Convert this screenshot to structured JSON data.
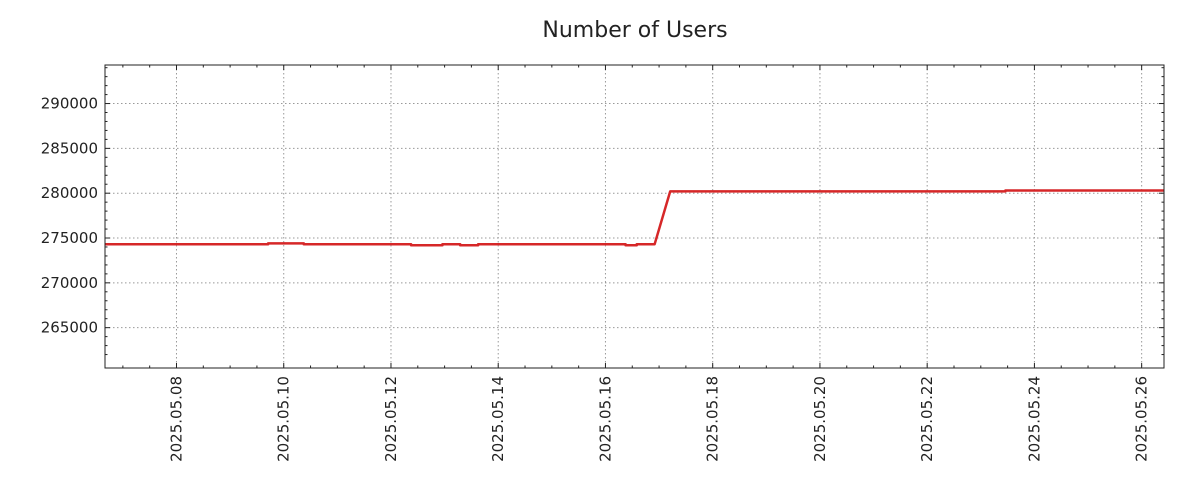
{
  "chart_data": {
    "type": "line",
    "title": "Number of Users",
    "xlabel": "",
    "ylabel": "",
    "x_axis_type": "date",
    "xlim": [
      "2025-05-06T16:00",
      "2025-05-26T10:00"
    ],
    "ylim": [
      260500,
      294300
    ],
    "grid": true,
    "legend": "none",
    "x_ticks": [
      "2025.05.08",
      "2025.05.10",
      "2025.05.12",
      "2025.05.14",
      "2025.05.16",
      "2025.05.18",
      "2025.05.20",
      "2025.05.22",
      "2025.05.24",
      "2025.05.26"
    ],
    "y_ticks": [
      "265000",
      "270000",
      "275000",
      "280000",
      "285000",
      "290000"
    ],
    "series": [
      {
        "color": "#d62728",
        "step": true,
        "x": [
          "2025-05-06T16:00",
          "2025-05-09T17:00",
          "2025-05-10T09:00",
          "2025-05-12T09:00",
          "2025-05-12T23:00",
          "2025-05-13T07:00",
          "2025-05-13T15:00",
          "2025-05-14T00:00",
          "2025-05-16T09:00",
          "2025-05-16T14:00",
          "2025-05-16T22:00",
          "2025-05-17T05:00",
          "2025-05-23T11:00",
          "2025-05-26T10:00"
        ],
        "y": [
          274300,
          274400,
          274300,
          274200,
          274300,
          274200,
          274300,
          274300,
          274200,
          274300,
          274300,
          280200,
          280300,
          280300
        ]
      }
    ]
  }
}
